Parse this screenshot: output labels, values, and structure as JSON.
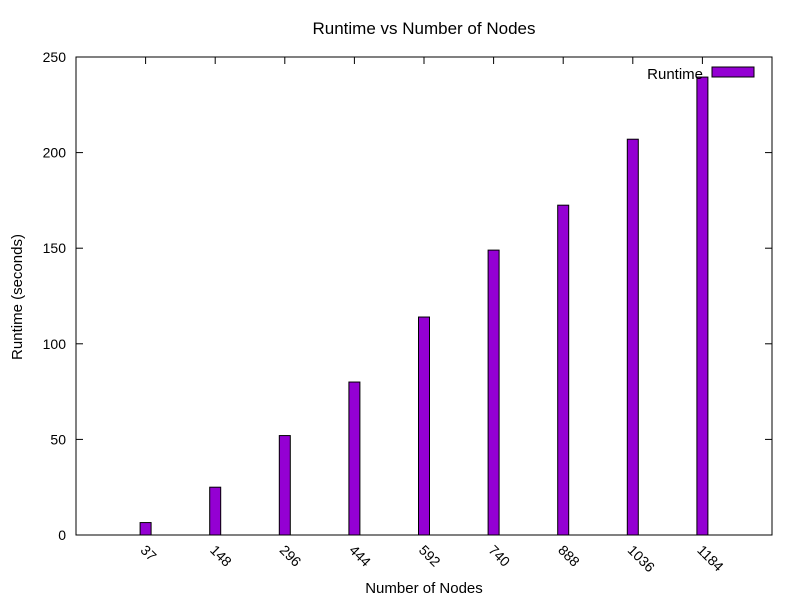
{
  "chart_data": {
    "type": "bar",
    "title": "Runtime vs Number of Nodes",
    "xlabel": "Number of Nodes",
    "ylabel": "Runtime (seconds)",
    "categories": [
      "37",
      "148",
      "296",
      "444",
      "592",
      "740",
      "888",
      "1036",
      "1184"
    ],
    "series": [
      {
        "name": "Runtime",
        "values": [
          6.5,
          25,
          52,
          80,
          114,
          149,
          172.5,
          207,
          239.5
        ],
        "color": "#9400d3"
      }
    ],
    "ylim": [
      0,
      250
    ],
    "yticks": [
      0,
      50,
      100,
      150,
      200,
      250
    ],
    "grid": false,
    "legend_position": "top-right"
  }
}
